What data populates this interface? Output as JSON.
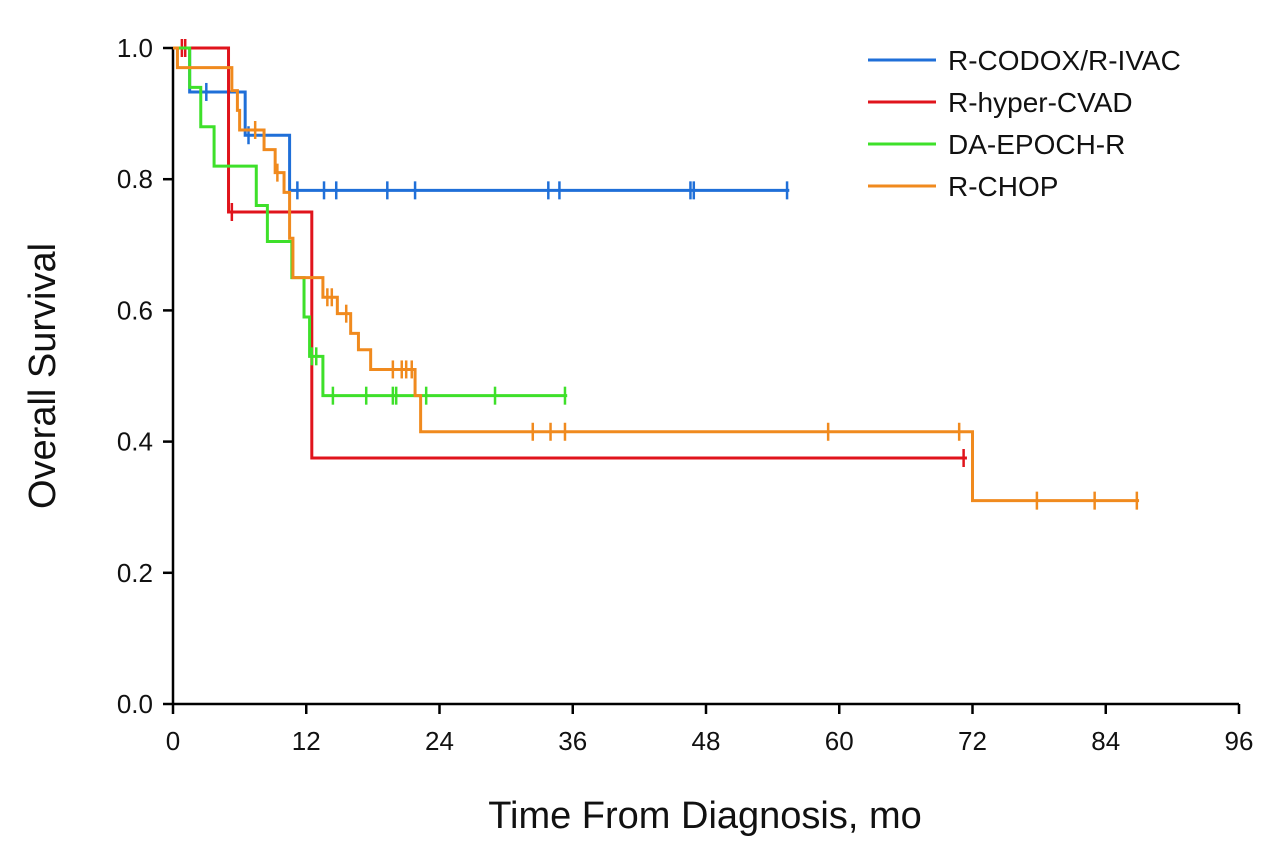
{
  "chart_data": {
    "type": "line",
    "subtype": "kaplan-meier step",
    "title": "",
    "xlabel": "Time From Diagnosis, mo",
    "ylabel": "Overall Survival",
    "xlim": [
      0,
      96
    ],
    "ylim": [
      0,
      1
    ],
    "x_ticks": [
      0,
      12,
      24,
      36,
      48,
      60,
      72,
      84,
      96
    ],
    "y_ticks": [
      0.0,
      0.2,
      0.4,
      0.6,
      0.8,
      1.0
    ],
    "x_tick_labels": [
      "0",
      "12",
      "24",
      "36",
      "48",
      "60",
      "72",
      "84",
      "96"
    ],
    "y_tick_labels": [
      "0.0",
      "0.2",
      "0.4",
      "0.6",
      "0.8",
      "1.0"
    ],
    "grid": false,
    "legend_position": "top-right",
    "series": [
      {
        "name": "R-CODOX/R-IVAC",
        "color": "#1f6fd8",
        "steps": [
          [
            0,
            1.0
          ],
          [
            1.5,
            0.933
          ],
          [
            6.5,
            0.867
          ],
          [
            10.5,
            0.783
          ]
        ],
        "end": 55.5,
        "censor": [
          3.0,
          6.8,
          11.2,
          13.6,
          14.7,
          19.3,
          21.8,
          33.8,
          34.8,
          46.6,
          46.9,
          55.3
        ]
      },
      {
        "name": "R-hyper-CVAD",
        "color": "#e0141c",
        "steps": [
          [
            0,
            1.0
          ],
          [
            5.0,
            0.75
          ],
          [
            12.5,
            0.375
          ]
        ],
        "end": 71.5,
        "censor": [
          0.8,
          1.1,
          5.3,
          71.2
        ]
      },
      {
        "name": "DA-EPOCH-R",
        "color": "#3ee02a",
        "steps": [
          [
            0,
            1.0
          ],
          [
            1.5,
            0.94
          ],
          [
            2.5,
            0.88
          ],
          [
            3.7,
            0.82
          ],
          [
            7.5,
            0.76
          ],
          [
            8.5,
            0.705
          ],
          [
            10.7,
            0.65
          ],
          [
            11.8,
            0.59
          ],
          [
            12.3,
            0.53
          ],
          [
            13.5,
            0.47
          ]
        ],
        "end": 35.5,
        "censor": [
          12.5,
          12.9,
          14.4,
          17.4,
          19.8,
          20.1,
          22.8,
          29.0,
          35.3
        ]
      },
      {
        "name": "R-CHOP",
        "color": "#f08a1e",
        "steps": [
          [
            0,
            1.0
          ],
          [
            0.4,
            0.97
          ],
          [
            5.3,
            0.935
          ],
          [
            5.8,
            0.905
          ],
          [
            6.0,
            0.875
          ],
          [
            8.2,
            0.845
          ],
          [
            9.2,
            0.81
          ],
          [
            10.0,
            0.78
          ],
          [
            10.5,
            0.71
          ],
          [
            10.8,
            0.65
          ],
          [
            13.5,
            0.62
          ],
          [
            14.8,
            0.595
          ],
          [
            16.0,
            0.565
          ],
          [
            16.7,
            0.54
          ],
          [
            17.8,
            0.51
          ],
          [
            21.8,
            0.47
          ],
          [
            22.3,
            0.415
          ],
          [
            72.0,
            0.31
          ]
        ],
        "end": 87.0,
        "censor": [
          7.4,
          9.4,
          13.9,
          14.3,
          15.6,
          19.8,
          20.6,
          21.0,
          21.5,
          32.4,
          34.0,
          35.3,
          59.0,
          70.8,
          77.8,
          83.0,
          86.8
        ]
      }
    ]
  }
}
